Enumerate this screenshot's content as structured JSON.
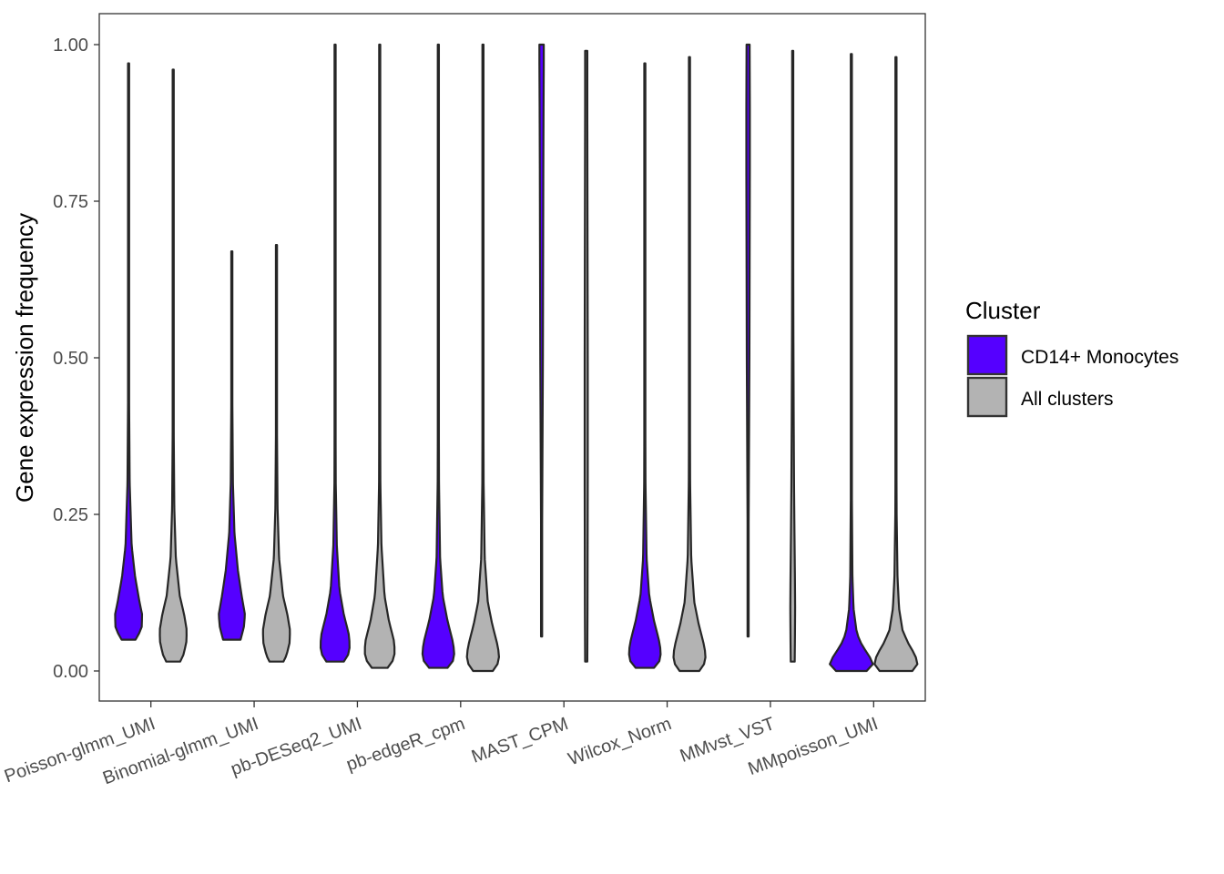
{
  "chart_data": {
    "type": "violin",
    "title": "",
    "xlabel": "",
    "ylabel": "Gene expression frequency",
    "ylim": [
      0.0,
      1.0
    ],
    "yticks": [
      "0.00",
      "0.25",
      "0.50",
      "0.75",
      "1.00"
    ],
    "grid": false,
    "categories": [
      "Poisson-glmm_UMI",
      "Binomial-glmm_UMI",
      "pb-DESeq2_UMI",
      "pb-edgeR_cpm",
      "MAST_CPM",
      "Wilcox_Norm",
      "MMvst_VST",
      "MMpoisson_UMI"
    ],
    "legend": {
      "title": "Cluster",
      "position": "right",
      "entries": [
        {
          "label": "CD14+ Monocytes",
          "color": "#5500FF"
        },
        {
          "label": "All clusters",
          "color": "#B3B3B3"
        }
      ]
    },
    "series": [
      {
        "name": "CD14+ Monocytes",
        "color": "#5500FF",
        "distributions": [
          {
            "min": 0.05,
            "max": 0.97,
            "profile": [
              [
                0.05,
                0.32
              ],
              [
                0.055,
                0.42
              ],
              [
                0.07,
                0.6
              ],
              [
                0.09,
                0.62
              ],
              [
                0.11,
                0.5
              ],
              [
                0.15,
                0.3
              ],
              [
                0.2,
                0.14
              ],
              [
                0.3,
                0.05
              ],
              [
                0.45,
                0.02
              ],
              [
                0.6,
                0.012
              ],
              [
                0.97,
                0.012
              ]
            ]
          },
          {
            "min": 0.05,
            "max": 0.67,
            "profile": [
              [
                0.05,
                0.4
              ],
              [
                0.07,
                0.55
              ],
              [
                0.09,
                0.6
              ],
              [
                0.12,
                0.45
              ],
              [
                0.16,
                0.28
              ],
              [
                0.22,
                0.12
              ],
              [
                0.3,
                0.05
              ],
              [
                0.45,
                0.02
              ],
              [
                0.67,
                0.012
              ]
            ]
          },
          {
            "min": 0.015,
            "max": 1.0,
            "profile": [
              [
                0.015,
                0.4
              ],
              [
                0.02,
                0.56
              ],
              [
                0.04,
                0.68
              ],
              [
                0.06,
                0.62
              ],
              [
                0.09,
                0.4
              ],
              [
                0.13,
                0.2
              ],
              [
                0.2,
                0.08
              ],
              [
                0.3,
                0.03
              ],
              [
                0.5,
                0.015
              ],
              [
                1.0,
                0.012
              ]
            ]
          },
          {
            "min": 0.005,
            "max": 1.0,
            "profile": [
              [
                0.005,
                0.42
              ],
              [
                0.015,
                0.66
              ],
              [
                0.03,
                0.74
              ],
              [
                0.05,
                0.64
              ],
              [
                0.08,
                0.42
              ],
              [
                0.12,
                0.2
              ],
              [
                0.18,
                0.08
              ],
              [
                0.3,
                0.03
              ],
              [
                0.5,
                0.015
              ],
              [
                1.0,
                0.012
              ]
            ]
          },
          {
            "min": 0.055,
            "max": 1.0,
            "profile": [
              [
                0.055,
                0.012
              ],
              [
                0.2,
                0.02
              ],
              [
                0.35,
                0.04
              ],
              [
                0.5,
                0.06
              ],
              [
                0.65,
                0.07
              ],
              [
                0.8,
                0.08
              ],
              [
                0.9,
                0.09
              ],
              [
                0.97,
                0.1
              ],
              [
                1.0,
                0.1
              ]
            ]
          },
          {
            "min": 0.005,
            "max": 0.97,
            "profile": [
              [
                0.005,
                0.42
              ],
              [
                0.015,
                0.66
              ],
              [
                0.03,
                0.74
              ],
              [
                0.05,
                0.64
              ],
              [
                0.08,
                0.42
              ],
              [
                0.12,
                0.2
              ],
              [
                0.18,
                0.08
              ],
              [
                0.3,
                0.03
              ],
              [
                0.5,
                0.015
              ],
              [
                0.97,
                0.012
              ]
            ]
          },
          {
            "min": 0.055,
            "max": 1.0,
            "profile": [
              [
                0.055,
                0.012
              ],
              [
                0.2,
                0.02
              ],
              [
                0.35,
                0.04
              ],
              [
                0.5,
                0.06
              ],
              [
                0.65,
                0.07
              ],
              [
                0.8,
                0.08
              ],
              [
                0.9,
                0.08
              ],
              [
                1.0,
                0.07
              ]
            ]
          },
          {
            "min": 0.0,
            "max": 0.985,
            "profile": [
              [
                0.0,
                0.7
              ],
              [
                0.005,
                0.9
              ],
              [
                0.012,
                1.0
              ],
              [
                0.025,
                0.8
              ],
              [
                0.04,
                0.5
              ],
              [
                0.06,
                0.25
              ],
              [
                0.1,
                0.1
              ],
              [
                0.15,
                0.05
              ],
              [
                0.3,
                0.02
              ],
              [
                0.985,
                0.012
              ]
            ]
          }
        ]
      },
      {
        "name": "All clusters",
        "color": "#B3B3B3",
        "distributions": [
          {
            "min": 0.015,
            "max": 0.96,
            "profile": [
              [
                0.015,
                0.32
              ],
              [
                0.025,
                0.46
              ],
              [
                0.045,
                0.6
              ],
              [
                0.065,
                0.62
              ],
              [
                0.09,
                0.5
              ],
              [
                0.12,
                0.3
              ],
              [
                0.18,
                0.12
              ],
              [
                0.26,
                0.05
              ],
              [
                0.4,
                0.02
              ],
              [
                0.96,
                0.012
              ]
            ]
          },
          {
            "min": 0.015,
            "max": 0.68,
            "profile": [
              [
                0.015,
                0.32
              ],
              [
                0.025,
                0.46
              ],
              [
                0.045,
                0.6
              ],
              [
                0.065,
                0.62
              ],
              [
                0.09,
                0.5
              ],
              [
                0.12,
                0.3
              ],
              [
                0.18,
                0.12
              ],
              [
                0.26,
                0.05
              ],
              [
                0.4,
                0.02
              ],
              [
                0.68,
                0.012
              ]
            ]
          },
          {
            "min": 0.005,
            "max": 1.0,
            "profile": [
              [
                0.005,
                0.36
              ],
              [
                0.015,
                0.58
              ],
              [
                0.03,
                0.7
              ],
              [
                0.05,
                0.64
              ],
              [
                0.08,
                0.42
              ],
              [
                0.12,
                0.22
              ],
              [
                0.2,
                0.08
              ],
              [
                0.3,
                0.03
              ],
              [
                0.5,
                0.015
              ],
              [
                1.0,
                0.012
              ]
            ]
          },
          {
            "min": 0.0,
            "max": 1.0,
            "profile": [
              [
                0.0,
                0.45
              ],
              [
                0.01,
                0.66
              ],
              [
                0.025,
                0.75
              ],
              [
                0.045,
                0.64
              ],
              [
                0.075,
                0.42
              ],
              [
                0.11,
                0.22
              ],
              [
                0.18,
                0.08
              ],
              [
                0.3,
                0.03
              ],
              [
                0.5,
                0.015
              ],
              [
                1.0,
                0.012
              ]
            ]
          },
          {
            "min": 0.015,
            "max": 0.99,
            "profile": [
              [
                0.015,
                0.05
              ],
              [
                0.1,
                0.06
              ],
              [
                0.3,
                0.07
              ],
              [
                0.5,
                0.07
              ],
              [
                0.7,
                0.06
              ],
              [
                0.9,
                0.05
              ],
              [
                0.99,
                0.05
              ]
            ]
          },
          {
            "min": 0.0,
            "max": 0.98,
            "profile": [
              [
                0.0,
                0.45
              ],
              [
                0.01,
                0.66
              ],
              [
                0.025,
                0.75
              ],
              [
                0.045,
                0.64
              ],
              [
                0.075,
                0.42
              ],
              [
                0.11,
                0.22
              ],
              [
                0.18,
                0.08
              ],
              [
                0.3,
                0.03
              ],
              [
                0.5,
                0.015
              ],
              [
                0.98,
                0.012
              ]
            ]
          },
          {
            "min": 0.015,
            "max": 0.99,
            "profile": [
              [
                0.015,
                0.09
              ],
              [
                0.05,
                0.1
              ],
              [
                0.1,
                0.11
              ],
              [
                0.15,
                0.1
              ],
              [
                0.22,
                0.08
              ],
              [
                0.3,
                0.06
              ],
              [
                0.4,
                0.045
              ],
              [
                0.55,
                0.03
              ],
              [
                0.75,
                0.02
              ],
              [
                0.99,
                0.012
              ]
            ]
          },
          {
            "min": 0.0,
            "max": 0.98,
            "profile": [
              [
                0.0,
                0.75
              ],
              [
                0.005,
                0.95
              ],
              [
                0.015,
                1.0
              ],
              [
                0.03,
                0.8
              ],
              [
                0.045,
                0.55
              ],
              [
                0.065,
                0.3
              ],
              [
                0.1,
                0.14
              ],
              [
                0.15,
                0.07
              ],
              [
                0.25,
                0.03
              ],
              [
                0.4,
                0.015
              ],
              [
                0.98,
                0.012
              ]
            ]
          }
        ]
      }
    ]
  }
}
